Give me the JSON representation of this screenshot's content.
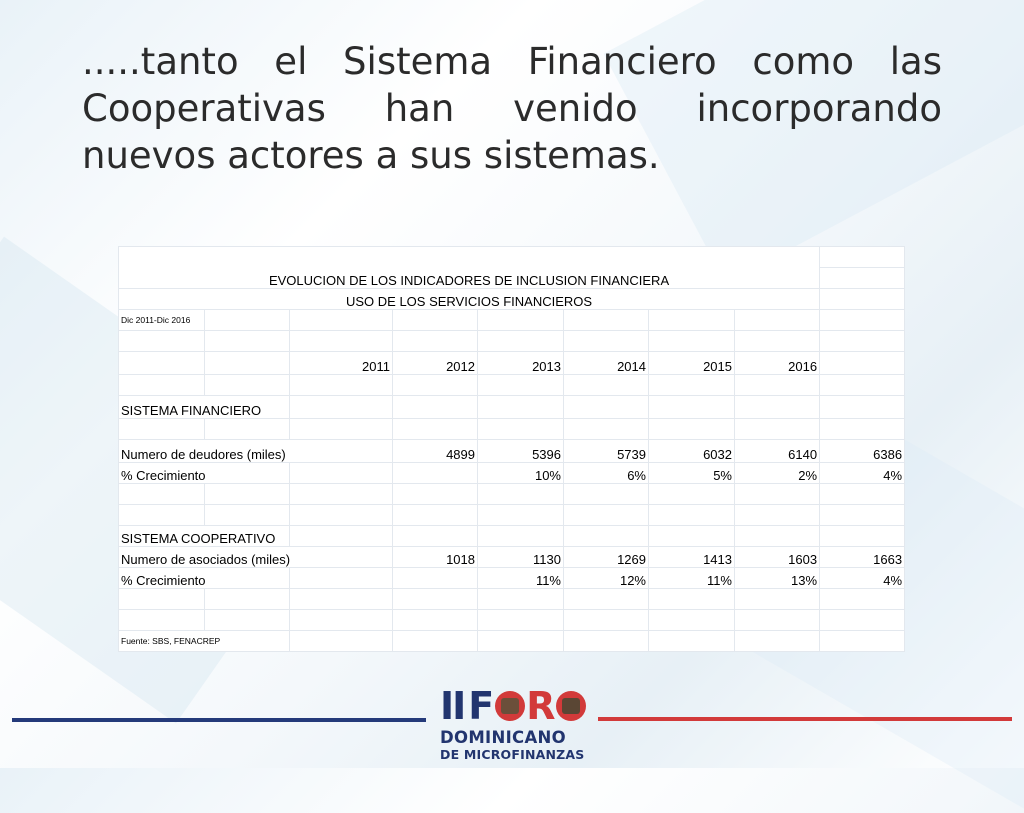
{
  "slide": {
    "title": ".....tanto el Sistema Financiero como las Cooperativas han venido incorporando nuevos actores a sus sistemas."
  },
  "table": {
    "heading1": "EVOLUCION DE LOS INDICADORES DE INCLUSION FINANCIERA",
    "heading2": "USO DE LOS SERVICIOS FINANCIEROS",
    "period": "Dic 2011-Dic 2016",
    "years": [
      "2011",
      "2012",
      "2013",
      "2014",
      "2015",
      "2016"
    ],
    "financiero": {
      "section": "SISTEMA FINANCIERO",
      "row1_label": "Numero de deudores (miles)",
      "row1_values": [
        "4899",
        "5396",
        "5739",
        "6032",
        "6140",
        "6386"
      ],
      "row2_label": "% Crecimiento",
      "row2_values": [
        "",
        "10%",
        "6%",
        "5%",
        "2%",
        "4%"
      ]
    },
    "cooperativo": {
      "section": "SISTEMA COOPERATIVO",
      "row1_label": "Numero de asociados (miles)",
      "row1_values": [
        "1018",
        "1130",
        "1269",
        "1413",
        "1603",
        "1663"
      ],
      "row2_label": "% Crecimiento",
      "row2_values": [
        "",
        "11%",
        "12%",
        "11%",
        "13%",
        "4%"
      ]
    },
    "source": "Fuente: SBS, FENACREP"
  },
  "logo": {
    "part1": "II",
    "part2": "F",
    "part3": "R",
    "line2": "DOMINICANO",
    "line3": "DE MICROFINANZAS"
  },
  "colors": {
    "navy": "#22356f",
    "red": "#d23a3a"
  }
}
